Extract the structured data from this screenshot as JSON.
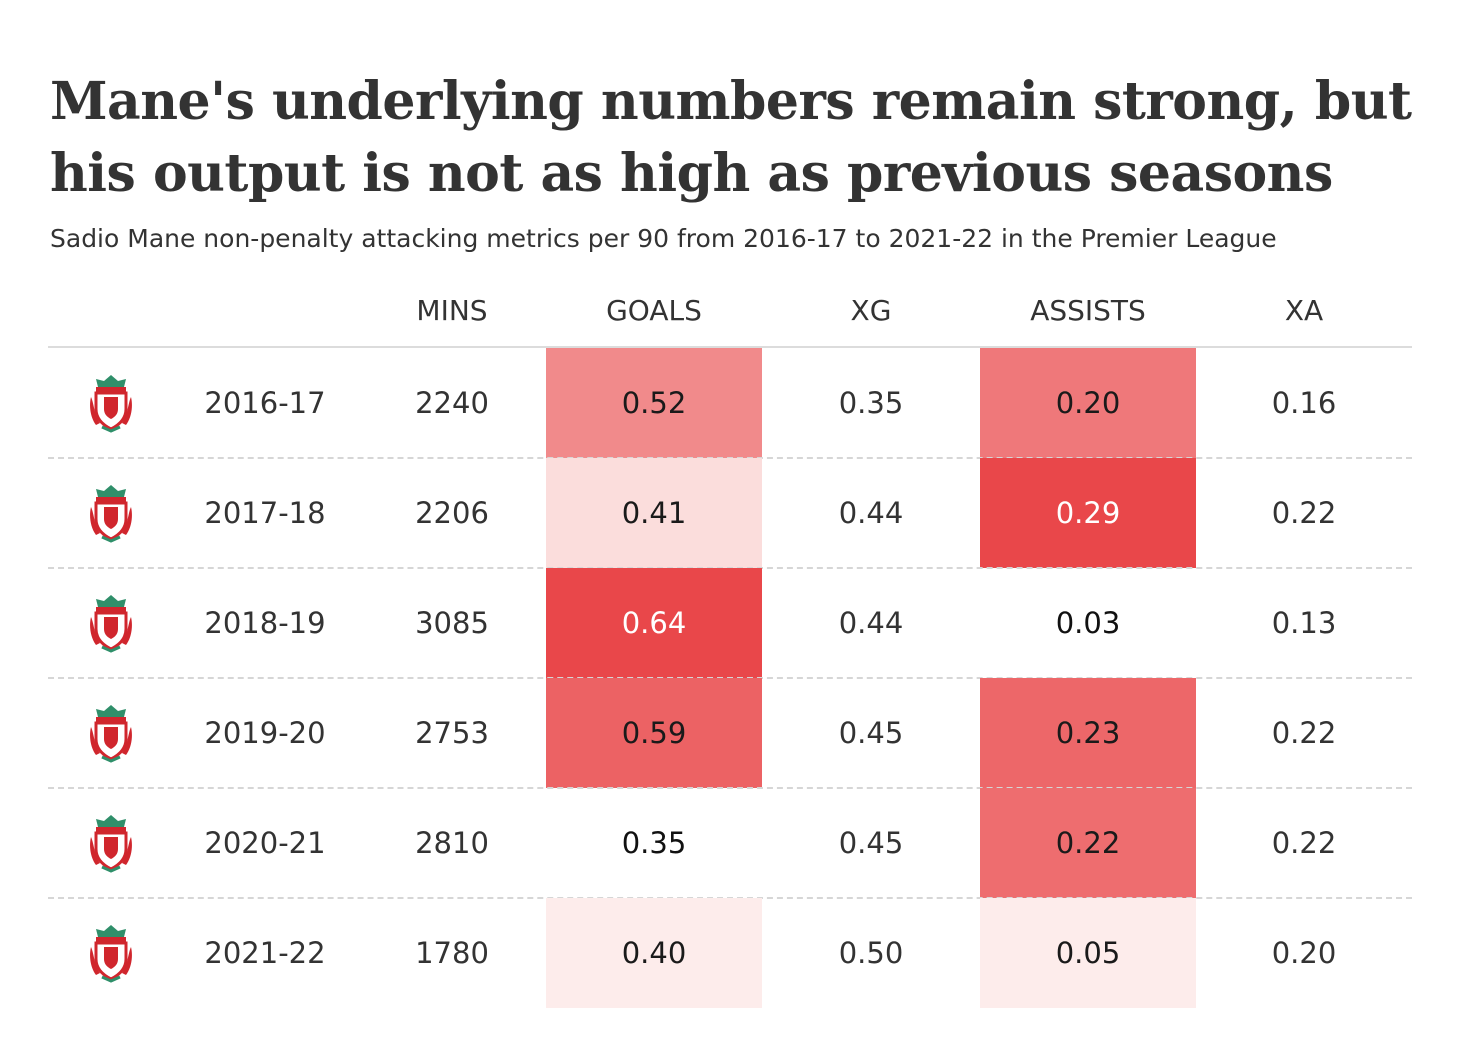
{
  "title": "Mane's underlying numbers remain strong, but his output is not as high as previous seasons",
  "subtitle": "Sadio Mane non-penalty attacking metrics per 90 from 2016-17 to 2021-22 in the Premier League",
  "colors": {
    "heat_low": "#fdeceb",
    "heat_high": "#e9474a",
    "row_rule": "#d6d6d6",
    "badge_red": "#d0262d",
    "badge_green": "#2f8f6a"
  },
  "chart_data": {
    "type": "table",
    "columns": [
      "MINS",
      "GOALS",
      "XG",
      "ASSISTS",
      "XA"
    ],
    "row_icon": "liverpool-crest-icon",
    "rows": [
      {
        "season": "2016-17",
        "mins": "2240",
        "goals": "0.52",
        "xg": "0.35",
        "assists": "0.20",
        "xa": "0.16"
      },
      {
        "season": "2017-18",
        "mins": "2206",
        "goals": "0.41",
        "xg": "0.44",
        "assists": "0.29",
        "xa": "0.22"
      },
      {
        "season": "2018-19",
        "mins": "3085",
        "goals": "0.64",
        "xg": "0.44",
        "assists": "0.03",
        "xa": "0.13"
      },
      {
        "season": "2019-20",
        "mins": "2753",
        "goals": "0.59",
        "xg": "0.45",
        "assists": "0.23",
        "xa": "0.22"
      },
      {
        "season": "2020-21",
        "mins": "2810",
        "goals": "0.35",
        "xg": "0.45",
        "assists": "0.22",
        "xa": "0.22"
      },
      {
        "season": "2021-22",
        "mins": "1780",
        "goals": "0.40",
        "xg": "0.50",
        "assists": "0.05",
        "xa": "0.20"
      }
    ],
    "highlighted_columns": [
      "goals",
      "assists"
    ],
    "highlight_threshold": {
      "goals": 0.4,
      "assists": 0.05
    }
  }
}
